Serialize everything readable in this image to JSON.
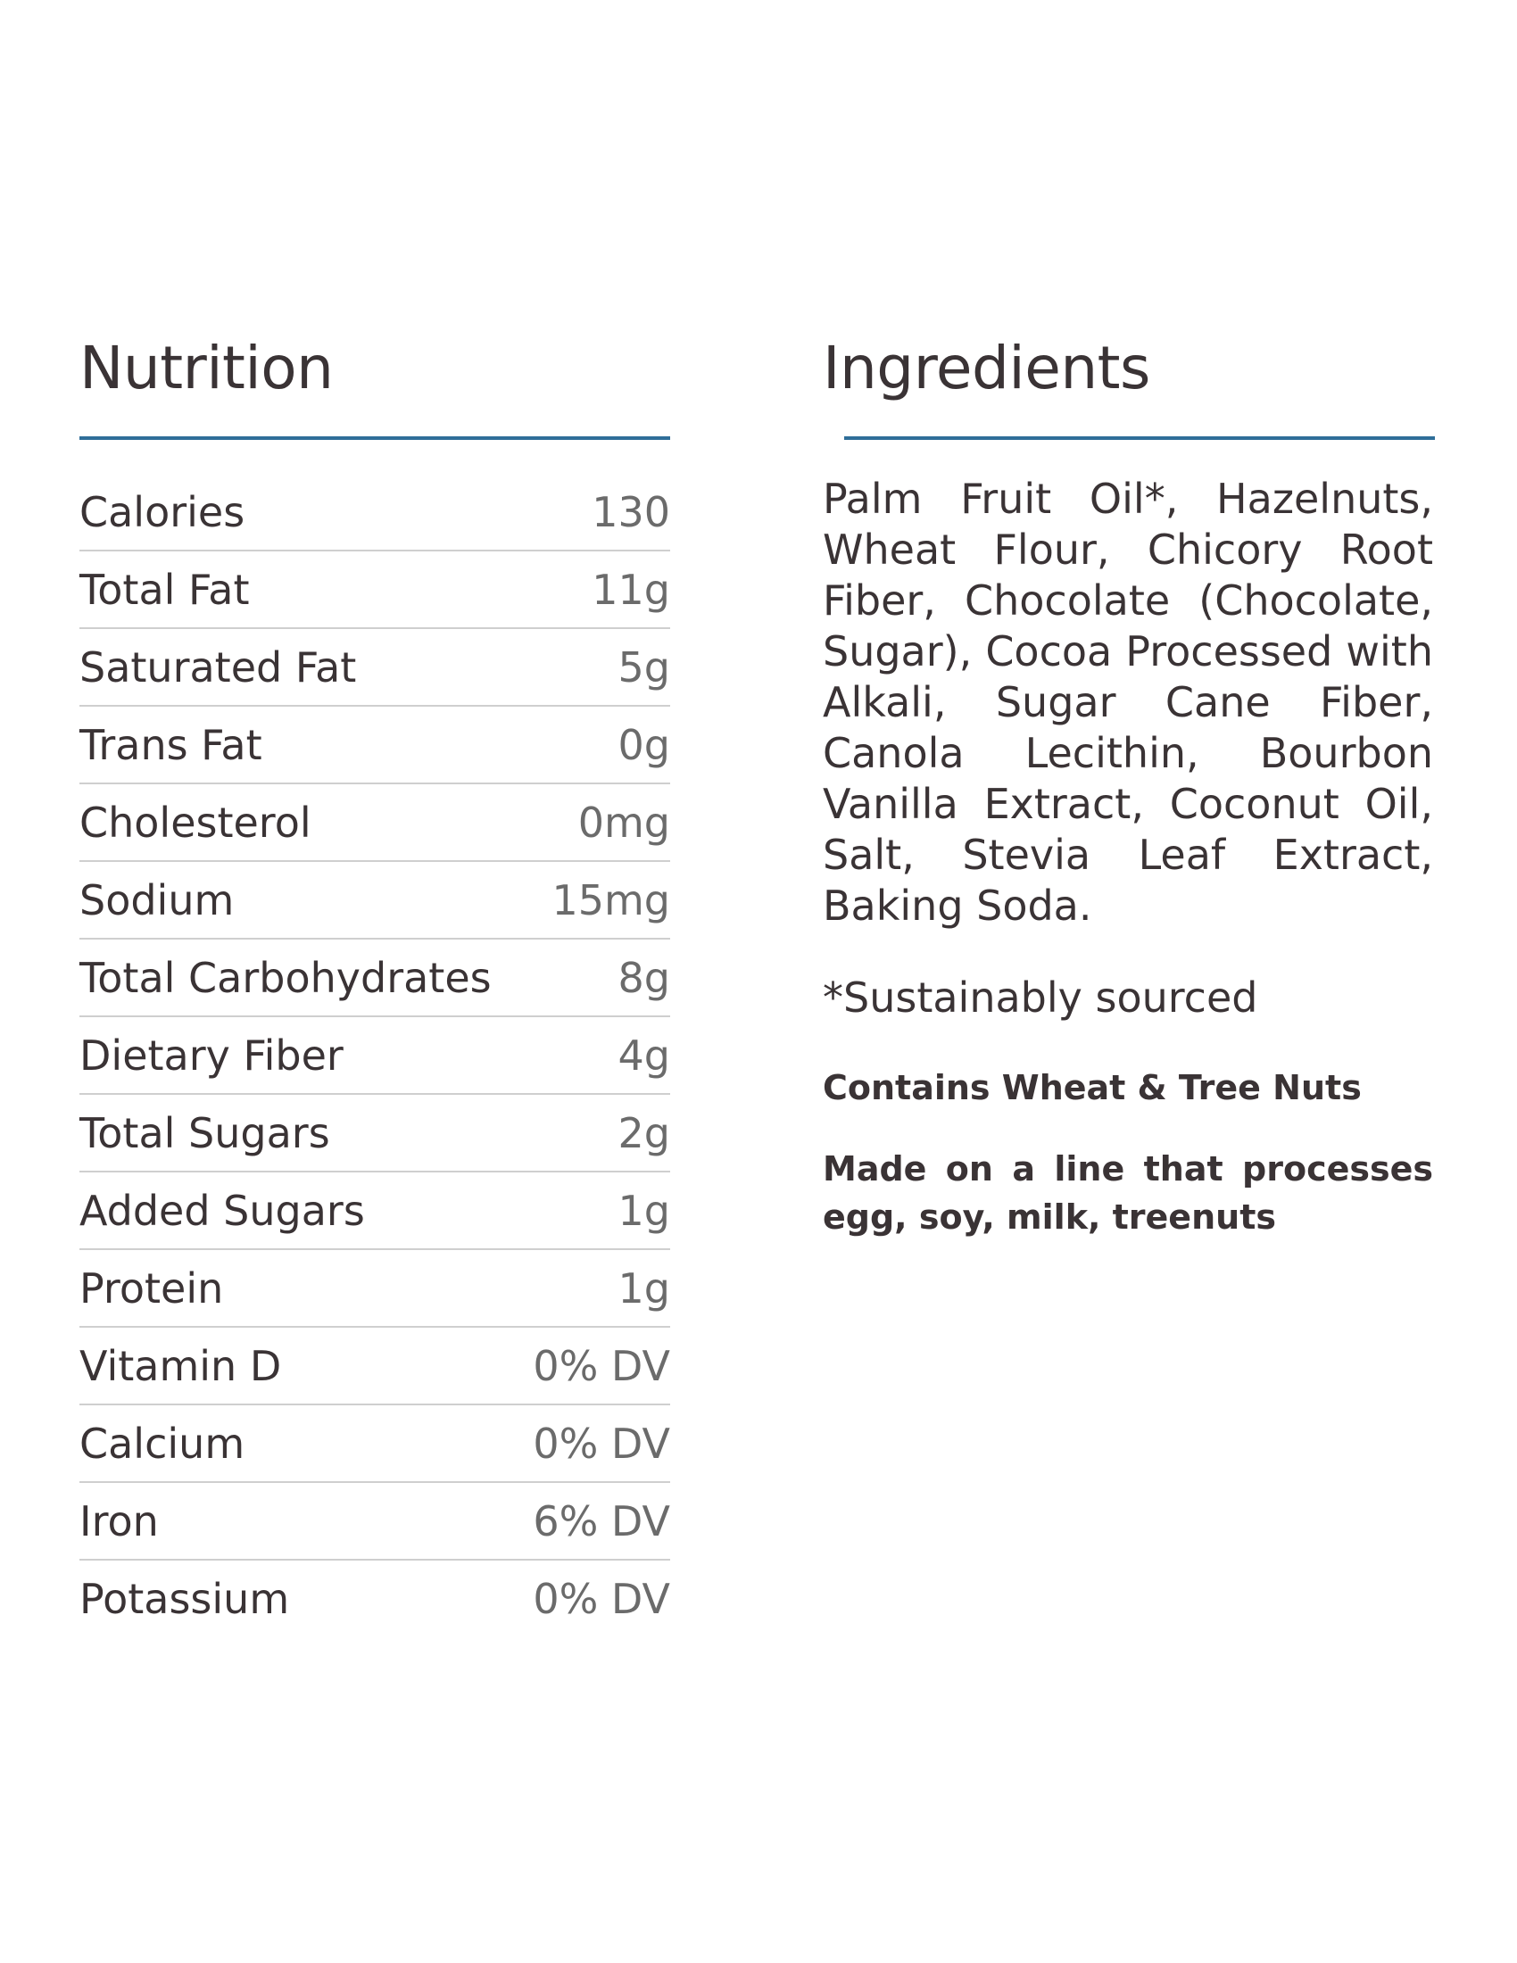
{
  "nutrition": {
    "title": "Nutrition",
    "rows": [
      {
        "label": "Calories",
        "value": "130"
      },
      {
        "label": "Total Fat",
        "value": "11g"
      },
      {
        "label": "Saturated Fat",
        "value": "5g"
      },
      {
        "label": "Trans Fat",
        "value": "0g"
      },
      {
        "label": "Cholesterol",
        "value": "0mg"
      },
      {
        "label": "Sodium",
        "value": "15mg"
      },
      {
        "label": "Total Carbohydrates",
        "value": "8g"
      },
      {
        "label": "Dietary Fiber",
        "value": "4g"
      },
      {
        "label": "Total Sugars",
        "value": "2g"
      },
      {
        "label": "Added Sugars",
        "value": "1g"
      },
      {
        "label": "Protein",
        "value": "1g"
      },
      {
        "label": "Vitamin D",
        "value": "0% DV"
      },
      {
        "label": "Calcium",
        "value": "0% DV"
      },
      {
        "label": "Iron",
        "value": "6% DV"
      },
      {
        "label": "Potassium",
        "value": "0% DV"
      }
    ]
  },
  "ingredients": {
    "title": "Ingredients",
    "text": "Palm Fruit Oil*, Hazelnuts, Wheat Flour, Chicory Root Fiber, Chocolate (Chocolate, Sugar), Cocoa Processed with Alkali, Sugar Cane Fiber, Canola Lecithin, Bourbon Vanilla Extract, Coconut Oil, Salt, Stevia Leaf Extract, Baking Soda.",
    "footnote": "*Sustainably sourced",
    "allergen": "Contains Wheat & Tree Nuts",
    "facility": "Made on a line that processes egg, soy, milk, treenuts"
  },
  "colors": {
    "accent_rule": "#2f6e99",
    "text_dark": "#3a3335",
    "text_value": "#6b6b6b",
    "divider": "#cfcfcf"
  }
}
